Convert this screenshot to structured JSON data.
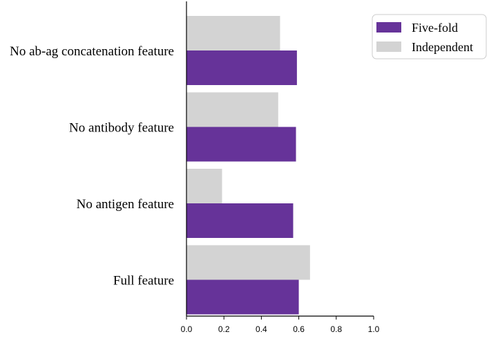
{
  "chart_data": {
    "type": "bar",
    "orientation": "horizontal",
    "title": "",
    "xlabel": "",
    "ylabel": "",
    "categories": [
      "No ab-ag concatenation feature",
      "No antibody feature",
      "No antigen feature ",
      "Full feature"
    ],
    "series": [
      {
        "name": "Five-fold",
        "color": "#663399",
        "values": [
          0.59,
          0.585,
          0.57,
          0.6
        ]
      },
      {
        "name": "Independent",
        "color": "#d3d3d3",
        "values": [
          0.5,
          0.49,
          0.19,
          0.66
        ]
      }
    ],
    "xlim": [
      0,
      1.0
    ],
    "xticks": [
      "0.0",
      "0.2",
      "0.4",
      "0.6",
      "0.8",
      "1.0"
    ],
    "grid": false,
    "legend_position": "top-right"
  }
}
